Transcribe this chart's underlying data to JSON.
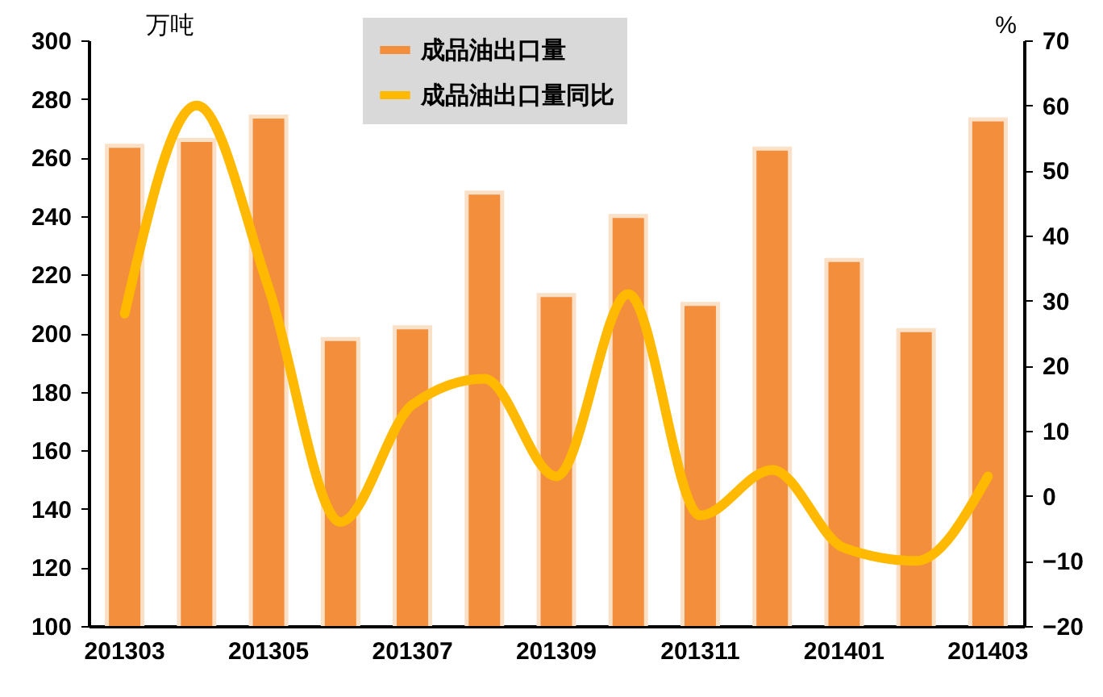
{
  "chart_data": {
    "type": "bar",
    "ylabel": "万吨",
    "y2label": "%",
    "categories": [
      "201303",
      null,
      "201305",
      null,
      "201307",
      null,
      "201309",
      null,
      "201311",
      null,
      "201401",
      null,
      "201403"
    ],
    "series": [
      {
        "name": "成品油出口量",
        "color": "#f28e3c",
        "values": [
          264,
          266,
          274,
          198,
          202,
          248,
          213,
          240,
          210,
          263,
          225,
          201,
          273
        ]
      },
      {
        "name": "成品油出口量同比",
        "type": "line",
        "axis": "y2",
        "color": "#ffb900",
        "values": [
          28,
          60,
          32,
          -4,
          14,
          18,
          3,
          31,
          -3,
          4,
          -8,
          -10,
          3
        ]
      }
    ],
    "ylim": [
      100,
      300
    ],
    "yticks": [
      100,
      120,
      140,
      160,
      180,
      200,
      220,
      240,
      260,
      280,
      300
    ],
    "y2lim": [
      -20,
      70
    ],
    "y2ticks": [
      -20,
      -10,
      0,
      10,
      20,
      30,
      40,
      50,
      60,
      70
    ],
    "grid": false,
    "legend": "top"
  }
}
